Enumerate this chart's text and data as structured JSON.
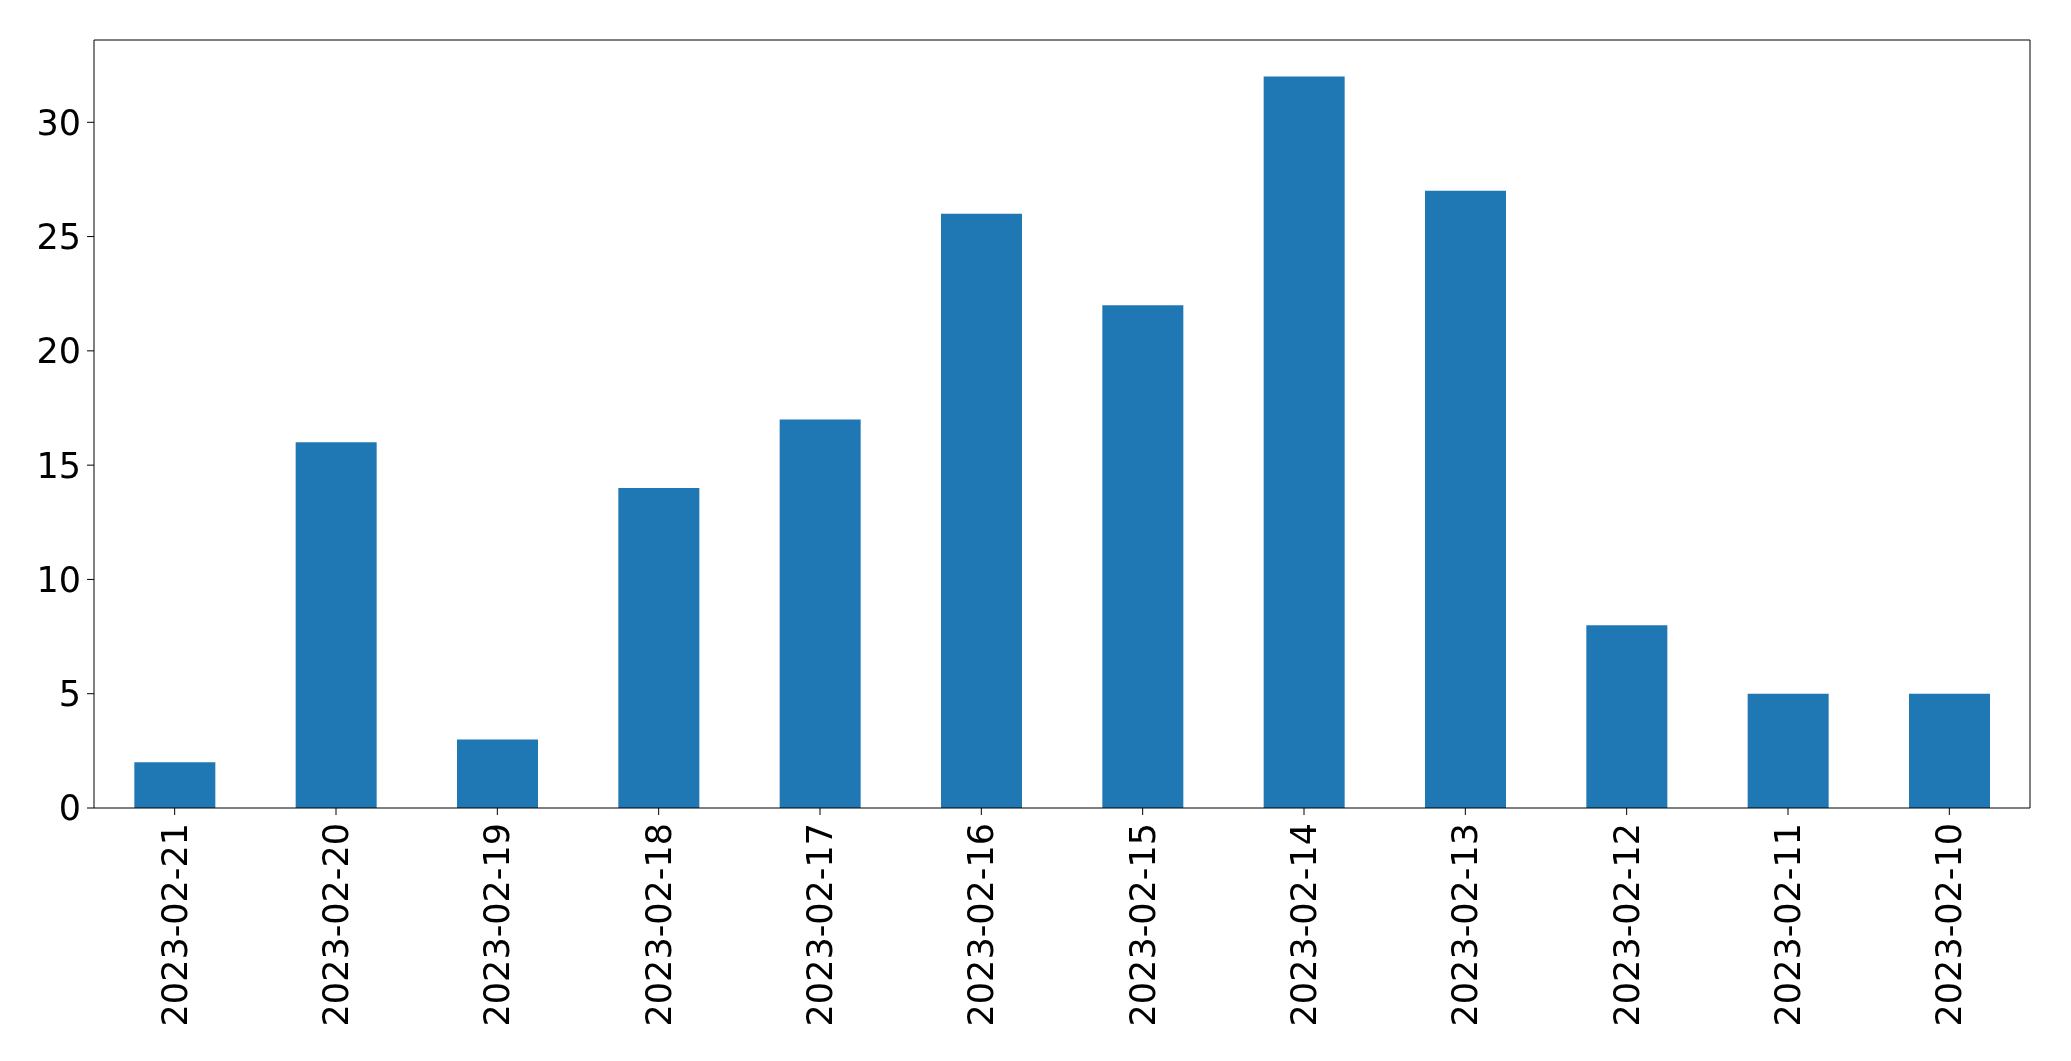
{
  "chart_data": {
    "type": "bar",
    "categories": [
      "2023-02-21",
      "2023-02-20",
      "2023-02-19",
      "2023-02-18",
      "2023-02-17",
      "2023-02-16",
      "2023-02-15",
      "2023-02-14",
      "2023-02-13",
      "2023-02-12",
      "2023-02-11",
      "2023-02-10"
    ],
    "values": [
      2,
      16,
      3,
      14,
      17,
      26,
      22,
      32,
      27,
      8,
      5,
      5
    ],
    "color": "#1f77b4",
    "ylim": [
      0,
      33.6
    ],
    "yticks": [
      0,
      5,
      10,
      15,
      20,
      25,
      30
    ]
  }
}
